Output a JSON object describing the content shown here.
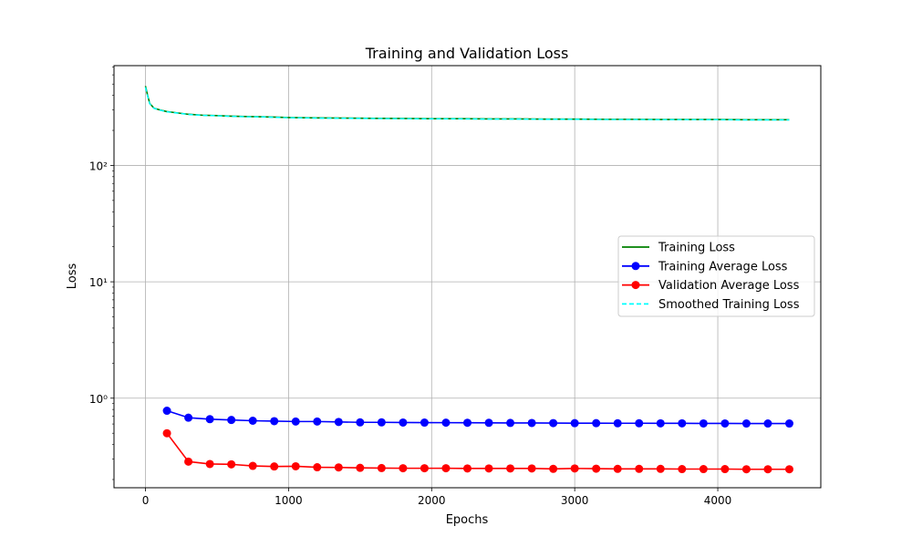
{
  "chart_data": {
    "type": "line",
    "title": "Training and Validation Loss",
    "xlabel": "Epochs",
    "ylabel": "Loss",
    "xlim": [
      -220,
      4720
    ],
    "ylim": [
      0.17,
      720
    ],
    "yscale": "log",
    "x_ticks": [
      0,
      1000,
      2000,
      3000,
      4000
    ],
    "x_tick_labels": [
      "0",
      "1000",
      "2000",
      "3000",
      "4000"
    ],
    "y_ticks": [
      1,
      10,
      100
    ],
    "y_tick_labels": [
      "10⁰",
      "10¹",
      "10²"
    ],
    "grid": true,
    "legend_position": "center-right",
    "series": [
      {
        "name": "Training Loss",
        "style": "solid",
        "color": "#008000",
        "x": [
          0,
          15,
          30,
          60,
          100,
          150,
          200,
          300,
          400,
          500,
          600,
          700,
          800,
          900,
          1000,
          1200,
          1400,
          1600,
          1800,
          2000,
          2200,
          2400,
          2600,
          2800,
          3000,
          3200,
          3400,
          3600,
          3800,
          4000,
          4200,
          4400,
          4500
        ],
        "y": [
          480,
          400,
          340,
          310,
          300,
          290,
          285,
          275,
          270,
          268,
          265,
          263,
          262,
          260,
          258,
          256,
          255,
          254,
          253,
          252,
          252,
          251,
          251,
          250,
          250,
          249,
          249,
          248,
          248,
          248,
          247,
          247,
          247
        ]
      },
      {
        "name": "Training Average Loss",
        "style": "marker-line",
        "color": "#0000ff",
        "x": [
          150,
          300,
          450,
          600,
          750,
          900,
          1050,
          1200,
          1350,
          1500,
          1650,
          1800,
          1950,
          2100,
          2250,
          2400,
          2550,
          2700,
          2850,
          3000,
          3150,
          3300,
          3450,
          3600,
          3750,
          3900,
          4050,
          4200,
          4350,
          4500
        ],
        "y": [
          0.78,
          0.68,
          0.66,
          0.65,
          0.64,
          0.635,
          0.63,
          0.63,
          0.625,
          0.62,
          0.62,
          0.618,
          0.617,
          0.616,
          0.615,
          0.614,
          0.613,
          0.612,
          0.611,
          0.61,
          0.61,
          0.609,
          0.609,
          0.608,
          0.608,
          0.607,
          0.607,
          0.606,
          0.606,
          0.606
        ]
      },
      {
        "name": "Validation Average Loss",
        "style": "marker-line",
        "color": "#ff0000",
        "x": [
          150,
          300,
          450,
          600,
          750,
          900,
          1050,
          1200,
          1350,
          1500,
          1650,
          1800,
          1950,
          2100,
          2250,
          2400,
          2550,
          2700,
          2850,
          3000,
          3150,
          3300,
          3450,
          3600,
          3750,
          3900,
          4050,
          4200,
          4350,
          4500
        ],
        "y": [
          0.5,
          0.285,
          0.272,
          0.27,
          0.262,
          0.259,
          0.26,
          0.255,
          0.254,
          0.252,
          0.251,
          0.25,
          0.25,
          0.25,
          0.249,
          0.249,
          0.249,
          0.249,
          0.247,
          0.249,
          0.248,
          0.247,
          0.247,
          0.247,
          0.246,
          0.246,
          0.246,
          0.245,
          0.245,
          0.245
        ]
      },
      {
        "name": "Smoothed Training Loss",
        "style": "dashed",
        "color": "#00ffff",
        "x": [
          0,
          15,
          30,
          60,
          100,
          150,
          200,
          300,
          400,
          500,
          600,
          700,
          800,
          900,
          1000,
          1200,
          1400,
          1600,
          1800,
          2000,
          2200,
          2400,
          2600,
          2800,
          3000,
          3200,
          3400,
          3600,
          3800,
          4000,
          4200,
          4400,
          4500
        ],
        "y": [
          470,
          395,
          338,
          309,
          299,
          289,
          284,
          274,
          269,
          267,
          264,
          262,
          261,
          259,
          257,
          255,
          254,
          253,
          252,
          251,
          251,
          250,
          250,
          249,
          249,
          248,
          248,
          247,
          247,
          247,
          246,
          246,
          246
        ]
      }
    ]
  }
}
